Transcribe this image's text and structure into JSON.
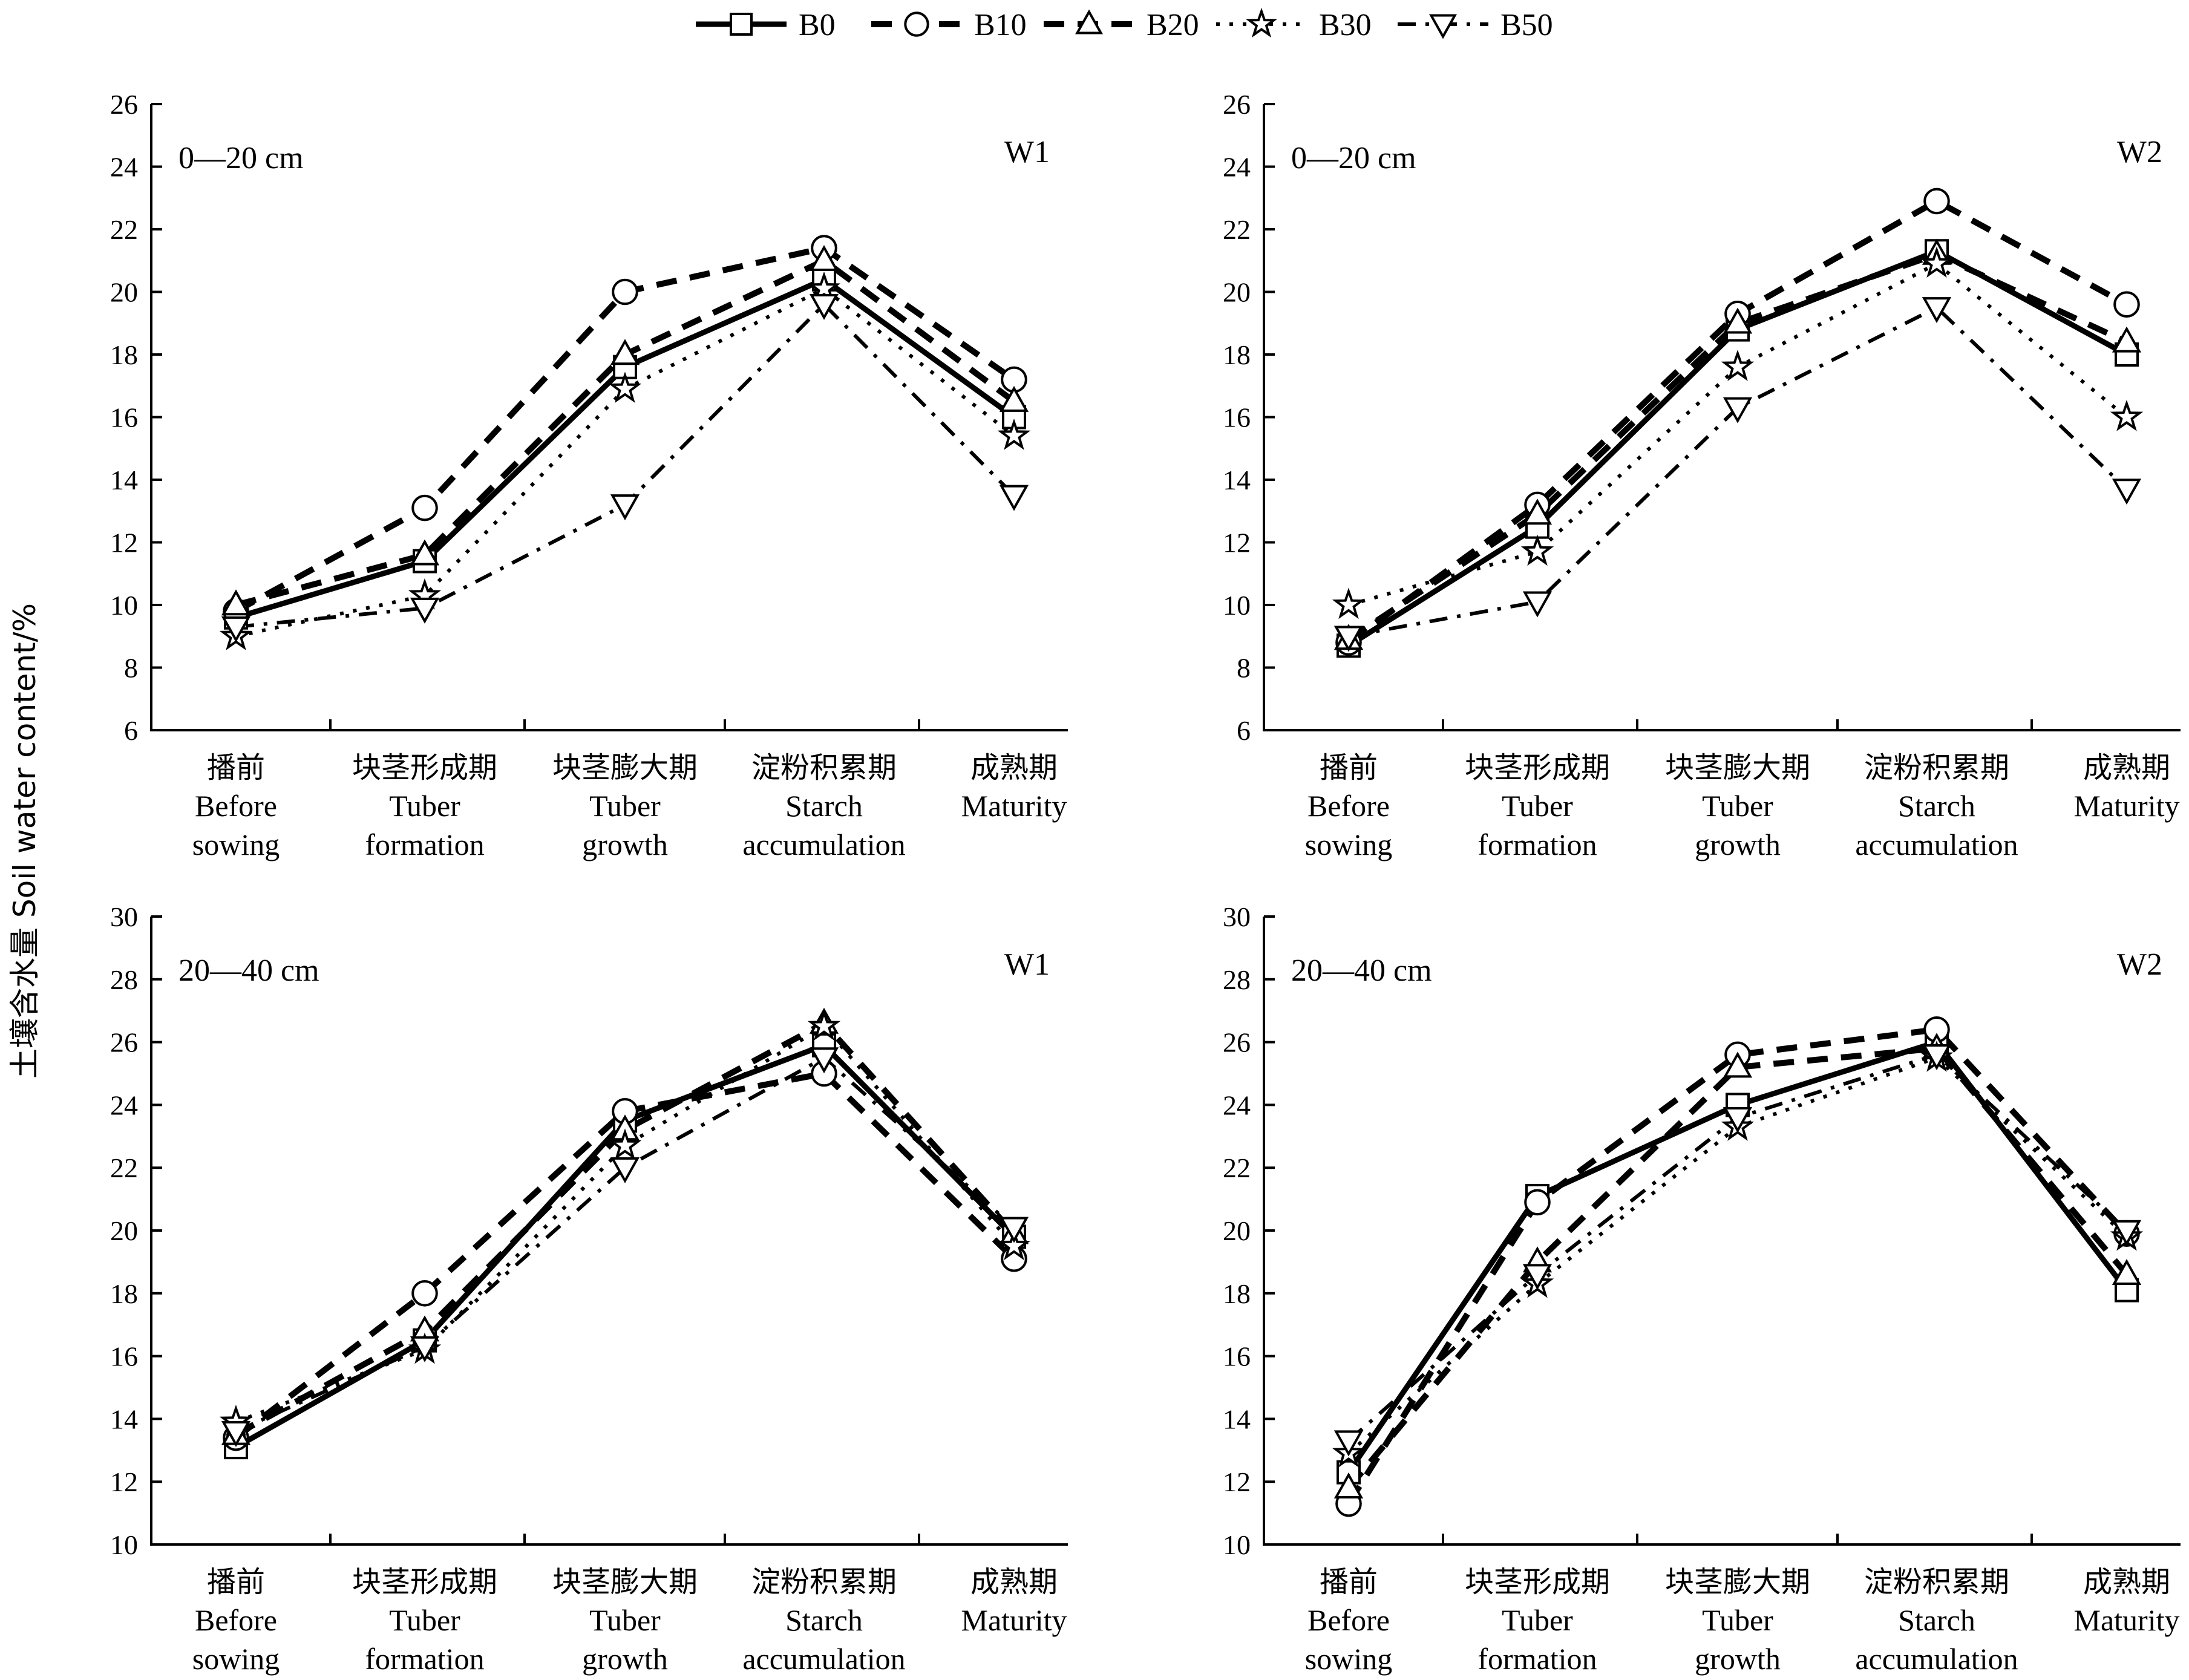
{
  "chart_data": {
    "type": "line",
    "ylabel": "土壤含水量  Soil water content/%",
    "categories": [
      {
        "zh": "播前",
        "en1": "Before",
        "en2": "sowing"
      },
      {
        "zh": "块茎形成期",
        "en1": "Tuber",
        "en2": "formation"
      },
      {
        "zh": "块茎膨大期",
        "en1": "Tuber",
        "en2": "growth"
      },
      {
        "zh": "淀粉积累期",
        "en1": "Starch",
        "en2": "accumulation"
      },
      {
        "zh": "成熟期",
        "en1": "Maturity",
        "en2": ""
      }
    ],
    "legend": {
      "placement": "top-center",
      "series": [
        {
          "name": "B0",
          "marker": "square",
          "dash": "solid"
        },
        {
          "name": "B10",
          "marker": "circle",
          "dash": "dash"
        },
        {
          "name": "B20",
          "marker": "triangle-up",
          "dash": "dash"
        },
        {
          "name": "B30",
          "marker": "star",
          "dash": "dot"
        },
        {
          "name": "B50",
          "marker": "triangle-down",
          "dash": "dashdot"
        }
      ]
    },
    "panels": [
      {
        "depth": "0—20 cm",
        "tag": "W1",
        "ylim": [
          6,
          26
        ],
        "yticks": [
          6,
          8,
          10,
          12,
          14,
          16,
          18,
          20,
          22,
          24,
          26
        ],
        "series": [
          {
            "name": "B0",
            "values": [
              9.6,
              11.4,
              17.6,
              20.4,
              16.0
            ]
          },
          {
            "name": "B10",
            "values": [
              9.8,
              13.1,
              20.0,
              21.4,
              17.2
            ]
          },
          {
            "name": "B20",
            "values": [
              10.0,
              11.6,
              18.0,
              21.0,
              16.5
            ]
          },
          {
            "name": "B30",
            "values": [
              9.0,
              10.3,
              16.9,
              20.1,
              15.4
            ]
          },
          {
            "name": "B50",
            "values": [
              9.3,
              9.9,
              13.2,
              19.6,
              13.5
            ]
          }
        ]
      },
      {
        "depth": "0—20 cm",
        "tag": "W2",
        "ylim": [
          6,
          26
        ],
        "yticks": [
          6,
          8,
          10,
          12,
          14,
          16,
          18,
          20,
          22,
          24,
          26
        ],
        "series": [
          {
            "name": "B0",
            "values": [
              8.7,
              12.5,
              18.8,
              21.3,
              18.0
            ]
          },
          {
            "name": "B10",
            "values": [
              8.8,
              13.2,
              19.3,
              22.9,
              19.6
            ]
          },
          {
            "name": "B20",
            "values": [
              8.9,
              12.9,
              19.0,
              21.2,
              18.4
            ]
          },
          {
            "name": "B30",
            "values": [
              10.0,
              11.7,
              17.6,
              20.9,
              16.0
            ]
          },
          {
            "name": "B50",
            "values": [
              9.0,
              10.1,
              16.3,
              19.5,
              13.7
            ]
          }
        ]
      },
      {
        "depth": "20—40 cm",
        "tag": "W1",
        "ylim": [
          10,
          30
        ],
        "yticks": [
          10,
          12,
          14,
          16,
          18,
          20,
          22,
          24,
          26,
          28,
          30
        ],
        "series": [
          {
            "name": "B0",
            "values": [
              13.1,
              16.5,
              23.5,
              25.9,
              19.8
            ]
          },
          {
            "name": "B10",
            "values": [
              13.4,
              18.0,
              23.8,
              25.0,
              19.1
            ]
          },
          {
            "name": "B20",
            "values": [
              13.5,
              16.8,
              23.2,
              26.6,
              19.9
            ]
          },
          {
            "name": "B30",
            "values": [
              13.9,
              16.2,
              22.7,
              26.5,
              19.5
            ]
          },
          {
            "name": "B50",
            "values": [
              13.6,
              16.3,
              22.0,
              25.5,
              20.1
            ]
          }
        ]
      },
      {
        "depth": "20—40 cm",
        "tag": "W2",
        "ylim": [
          10,
          30
        ],
        "yticks": [
          10,
          12,
          14,
          16,
          18,
          20,
          22,
          24,
          26,
          28,
          30
        ],
        "series": [
          {
            "name": "B0",
            "values": [
              12.3,
              21.1,
              24.0,
              26.0,
              18.1
            ]
          },
          {
            "name": "B10",
            "values": [
              11.3,
              20.9,
              25.6,
              26.4,
              19.9
            ]
          },
          {
            "name": "B20",
            "values": [
              11.8,
              19.0,
              25.2,
              25.8,
              18.6
            ]
          },
          {
            "name": "B30",
            "values": [
              12.9,
              18.3,
              23.3,
              25.5,
              19.8
            ]
          },
          {
            "name": "B50",
            "values": [
              13.3,
              18.6,
              23.6,
              25.6,
              20.0
            ]
          }
        ]
      }
    ]
  }
}
